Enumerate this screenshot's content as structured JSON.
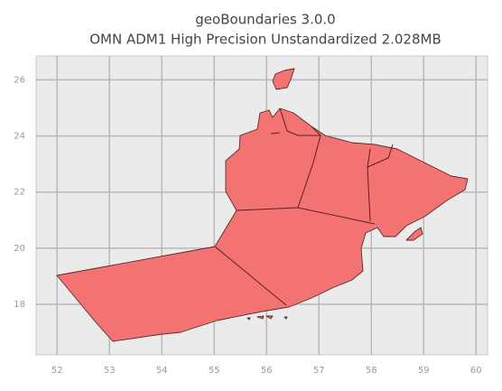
{
  "chart_data": {
    "type": "map",
    "title": "geoBoundaries 3.0.0",
    "subtitle": "OMN ADM1 High Precision Unstandardized 2.028MB",
    "xlim": [
      51.6,
      60.22
    ],
    "ylim": [
      16.2,
      26.85
    ],
    "xticks": [
      52,
      53,
      54,
      55,
      56,
      57,
      58,
      59,
      60
    ],
    "yticks": [
      18,
      20,
      22,
      24,
      26
    ],
    "grid": true
  }
}
